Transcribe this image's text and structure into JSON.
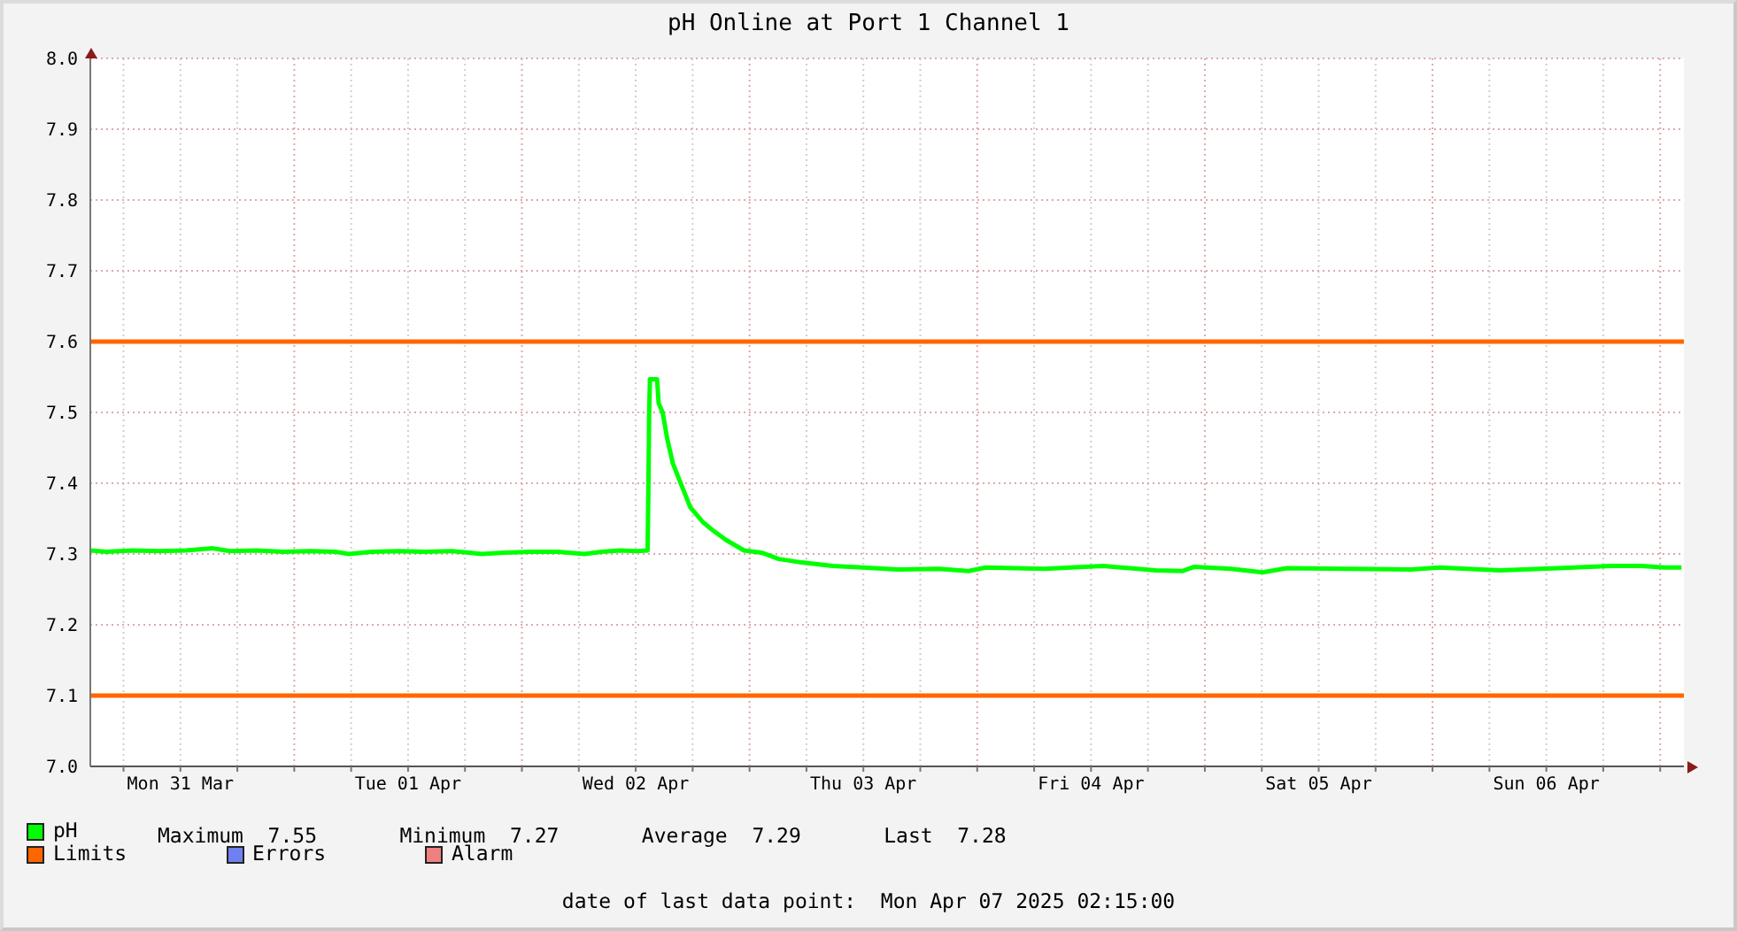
{
  "chart_data": {
    "type": "line",
    "title": "pH Online at Port 1 Channel 1",
    "xlim": [
      "2025-03-31T02:30",
      "2025-04-07T02:30"
    ],
    "xticks": [
      {
        "value": "2025-03-31T06:00",
        "label": null
      },
      {
        "value": "2025-03-31T12:00",
        "label": "Mon 31 Mar"
      },
      {
        "value": "2025-03-31T18:00",
        "label": null
      },
      {
        "value": "2025-04-01T00:00",
        "label": null
      },
      {
        "value": "2025-04-01T06:00",
        "label": null
      },
      {
        "value": "2025-04-01T12:00",
        "label": "Tue 01 Apr"
      },
      {
        "value": "2025-04-01T18:00",
        "label": null
      },
      {
        "value": "2025-04-02T00:00",
        "label": null
      },
      {
        "value": "2025-04-02T06:00",
        "label": null
      },
      {
        "value": "2025-04-02T12:00",
        "label": "Wed 02 Apr"
      },
      {
        "value": "2025-04-02T18:00",
        "label": null
      },
      {
        "value": "2025-04-03T00:00",
        "label": null
      },
      {
        "value": "2025-04-03T06:00",
        "label": null
      },
      {
        "value": "2025-04-03T12:00",
        "label": "Thu 03 Apr"
      },
      {
        "value": "2025-04-03T18:00",
        "label": null
      },
      {
        "value": "2025-04-04T00:00",
        "label": null
      },
      {
        "value": "2025-04-04T06:00",
        "label": null
      },
      {
        "value": "2025-04-04T12:00",
        "label": "Fri 04 Apr"
      },
      {
        "value": "2025-04-04T18:00",
        "label": null
      },
      {
        "value": "2025-04-05T00:00",
        "label": null
      },
      {
        "value": "2025-04-05T06:00",
        "label": null
      },
      {
        "value": "2025-04-05T12:00",
        "label": "Sat 05 Apr"
      },
      {
        "value": "2025-04-05T18:00",
        "label": null
      },
      {
        "value": "2025-04-06T00:00",
        "label": null
      },
      {
        "value": "2025-04-06T06:00",
        "label": null
      },
      {
        "value": "2025-04-06T12:00",
        "label": "Sun 06 Apr"
      },
      {
        "value": "2025-04-06T18:00",
        "label": null
      },
      {
        "value": "2025-04-07T00:00",
        "label": null
      }
    ],
    "ylim": [
      7.0,
      8.0
    ],
    "yticks": [
      {
        "value": 7,
        "label": "7.0"
      },
      7.1,
      7.2,
      7.3,
      7.4,
      7.5,
      7.6,
      7.7,
      7.8,
      7.9,
      {
        "value": 8,
        "label": "8.0"
      }
    ],
    "grid": true,
    "legend": "bottom",
    "series": [
      {
        "name": "pH",
        "color": "#00ff00",
        "x": [
          "2025-03-31T02:30",
          "2025-03-31T04:10",
          "2025-03-31T07:00",
          "2025-03-31T09:45",
          "2025-03-31T12:35",
          "2025-03-31T15:25",
          "2025-03-31T17:15",
          "2025-03-31T20:00",
          "2025-03-31T22:50",
          "2025-04-01T01:40",
          "2025-04-01T04:25",
          "2025-04-01T05:45",
          "2025-04-01T08:10",
          "2025-04-01T11:00",
          "2025-04-01T13:45",
          "2025-04-01T16:35",
          "2025-04-01T18:25",
          "2025-04-01T19:45",
          "2025-04-01T22:10",
          "2025-04-02T01:00",
          "2025-04-02T03:45",
          "2025-04-02T06:35",
          "2025-04-02T08:25",
          "2025-04-02T10:20",
          "2025-04-02T12:10",
          "2025-04-02T13:15",
          "2025-04-02T13:20",
          "2025-04-02T13:25",
          "2025-04-02T13:30",
          "2025-04-02T14:15",
          "2025-04-02T14:25",
          "2025-04-02T14:50",
          "2025-04-02T15:20",
          "2025-04-02T15:55",
          "2025-04-02T16:30",
          "2025-04-02T17:15",
          "2025-04-02T17:45",
          "2025-04-02T19:05",
          "2025-04-02T20:10",
          "2025-04-02T21:30",
          "2025-04-02T23:25",
          "2025-04-03T01:15",
          "2025-04-03T03:05",
          "2025-04-03T05:30",
          "2025-04-03T08:45",
          "2025-04-03T11:55",
          "2025-04-03T15:40",
          "2025-04-03T19:55",
          "2025-04-03T23:05",
          "2025-04-04T00:55",
          "2025-04-04T07:05",
          "2025-04-04T13:15",
          "2025-04-04T18:50",
          "2025-04-04T21:40",
          "2025-04-04T22:55",
          "2025-04-05T02:45",
          "2025-04-05T06:05",
          "2025-04-05T08:40",
          "2025-04-05T14:50",
          "2025-04-05T21:45",
          "2025-04-06T00:45",
          "2025-04-06T07:05",
          "2025-04-06T13:15",
          "2025-04-06T18:50",
          "2025-04-06T22:00",
          "2025-04-07T00:25",
          "2025-04-07T02:15"
        ],
        "values": [
          7.305,
          7.303,
          7.305,
          7.304,
          7.305,
          7.308,
          7.304,
          7.305,
          7.303,
          7.304,
          7.303,
          7.3,
          7.303,
          7.304,
          7.303,
          7.304,
          7.302,
          7.3,
          7.302,
          7.303,
          7.303,
          7.3,
          7.303,
          7.305,
          7.304,
          7.305,
          7.388,
          7.499,
          7.547,
          7.547,
          7.513,
          7.5,
          7.462,
          7.428,
          7.408,
          7.383,
          7.366,
          7.345,
          7.333,
          7.32,
          7.305,
          7.302,
          7.293,
          7.288,
          7.283,
          7.281,
          7.278,
          7.279,
          7.276,
          7.281,
          7.279,
          7.283,
          7.277,
          7.276,
          7.282,
          7.279,
          7.274,
          7.28,
          7.279,
          7.278,
          7.281,
          7.277,
          7.28,
          7.283,
          7.283,
          7.281,
          7.281
        ]
      },
      {
        "name": "Limits",
        "color": "#ff6600",
        "x": [
          "2025-03-31T02:30",
          "2025-04-07T02:30"
        ],
        "values": [
          7.6,
          7.6
        ]
      },
      {
        "color": "#ff6600",
        "x": [
          "2025-03-31T02:30",
          "2025-04-07T02:30"
        ],
        "values": [
          7.1,
          7.1
        ]
      },
      {
        "name": "Errors",
        "color": "#7080f0"
      },
      {
        "name": "Alarm",
        "color": "#f08080"
      }
    ],
    "annotations": [
      "Maximum  7.55",
      "Minimum  7.27",
      "Average  7.29",
      "Last  7.28",
      "date of last data point:  Mon Apr 07 2025 02:15:00"
    ]
  }
}
